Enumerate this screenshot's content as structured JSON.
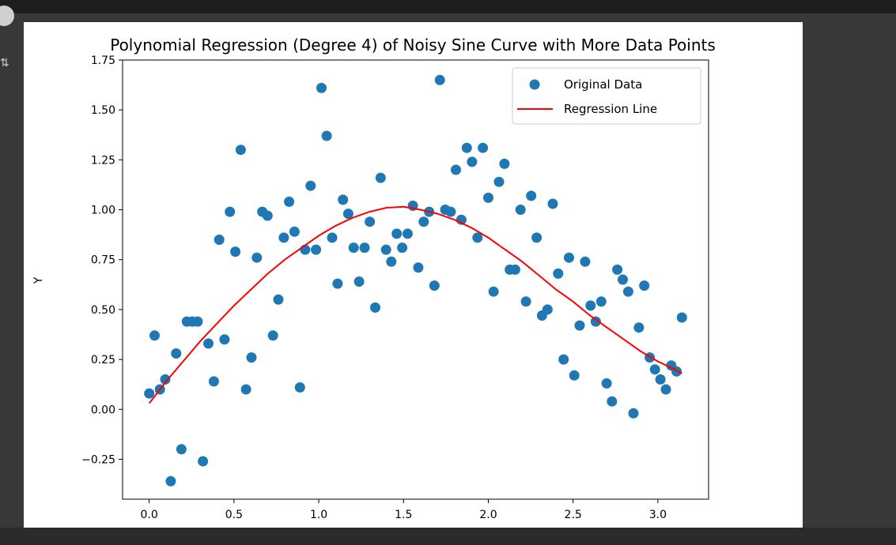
{
  "chart_data": {
    "type": "scatter",
    "title": "Polynomial Regression (Degree 4) of Noisy Sine Curve with More Data Points",
    "xlabel": "",
    "ylabel": "Y",
    "xlim": [
      -0.157,
      3.299
    ],
    "ylim": [
      -0.45,
      1.75
    ],
    "xticks": [
      0.0,
      0.5,
      1.0,
      1.5,
      2.0,
      2.5,
      3.0
    ],
    "xtick_labels": [
      "0.0",
      "0.5",
      "1.0",
      "1.5",
      "2.0",
      "2.5",
      "3.0"
    ],
    "yticks": [
      -0.25,
      0.0,
      0.25,
      0.5,
      0.75,
      1.0,
      1.25,
      1.5,
      1.75
    ],
    "ytick_labels": [
      "−0.25",
      "0.00",
      "0.25",
      "0.50",
      "0.75",
      "1.00",
      "1.25",
      "1.50",
      "1.75"
    ],
    "grid": false,
    "legend_position": "top-right",
    "series": [
      {
        "name": "Original Data",
        "kind": "scatter",
        "color": "#1f77b4",
        "x": [
          0.0,
          0.032,
          0.063,
          0.095,
          0.127,
          0.159,
          0.19,
          0.222,
          0.254,
          0.286,
          0.317,
          0.349,
          0.381,
          0.413,
          0.444,
          0.476,
          0.508,
          0.54,
          0.571,
          0.603,
          0.635,
          0.667,
          0.698,
          0.73,
          0.762,
          0.794,
          0.825,
          0.857,
          0.889,
          0.92,
          0.952,
          0.984,
          1.016,
          1.047,
          1.079,
          1.111,
          1.143,
          1.174,
          1.206,
          1.238,
          1.27,
          1.301,
          1.333,
          1.365,
          1.397,
          1.428,
          1.46,
          1.492,
          1.524,
          1.555,
          1.587,
          1.619,
          1.651,
          1.682,
          1.714,
          1.746,
          1.778,
          1.809,
          1.841,
          1.873,
          1.904,
          1.936,
          1.968,
          2.0,
          2.031,
          2.063,
          2.095,
          2.127,
          2.158,
          2.19,
          2.222,
          2.253,
          2.285,
          2.317,
          2.349,
          2.38,
          2.412,
          2.444,
          2.476,
          2.507,
          2.539,
          2.571,
          2.603,
          2.634,
          2.666,
          2.698,
          2.729,
          2.761,
          2.793,
          2.825,
          2.856,
          2.888,
          2.92,
          2.952,
          2.983,
          3.015,
          3.047,
          3.079,
          3.11,
          3.142
        ],
        "y": [
          0.08,
          0.37,
          0.1,
          0.15,
          -0.36,
          0.28,
          -0.2,
          0.44,
          0.44,
          0.44,
          -0.26,
          0.33,
          0.14,
          0.85,
          0.35,
          0.99,
          0.79,
          1.3,
          0.1,
          0.26,
          0.76,
          0.99,
          0.97,
          0.37,
          0.55,
          0.86,
          1.04,
          0.89,
          0.11,
          0.8,
          1.12,
          0.8,
          1.61,
          1.37,
          0.86,
          0.63,
          1.05,
          0.98,
          0.81,
          0.64,
          0.81,
          0.94,
          0.51,
          1.16,
          0.8,
          0.74,
          0.88,
          0.81,
          0.88,
          1.02,
          0.71,
          0.94,
          0.99,
          0.62,
          1.65,
          1.0,
          0.99,
          1.2,
          0.95,
          1.31,
          1.24,
          0.86,
          1.31,
          1.06,
          0.59,
          1.14,
          1.23,
          0.7,
          0.7,
          1.0,
          0.54,
          1.07,
          0.86,
          0.47,
          0.5,
          1.03,
          0.68,
          0.25,
          0.76,
          0.17,
          0.42,
          0.74,
          0.52,
          0.44,
          0.54,
          0.13,
          0.04,
          0.7,
          0.65,
          0.59,
          -0.02,
          0.41,
          0.62,
          0.26,
          0.2,
          0.15,
          0.1,
          0.22,
          0.19,
          0.46
        ]
      },
      {
        "name": "Regression Line",
        "kind": "line",
        "color": "#ff0000",
        "x": [
          0.0,
          0.1,
          0.2,
          0.3,
          0.4,
          0.5,
          0.6,
          0.7,
          0.8,
          0.9,
          1.0,
          1.1,
          1.2,
          1.3,
          1.4,
          1.5,
          1.6,
          1.7,
          1.8,
          1.9,
          2.0,
          2.1,
          2.2,
          2.3,
          2.4,
          2.5,
          2.6,
          2.7,
          2.8,
          2.9,
          3.0,
          3.1,
          3.142
        ],
        "y": [
          0.03,
          0.14,
          0.24,
          0.34,
          0.43,
          0.52,
          0.6,
          0.68,
          0.75,
          0.81,
          0.87,
          0.92,
          0.96,
          0.99,
          1.01,
          1.015,
          1.0,
          0.98,
          0.95,
          0.91,
          0.86,
          0.8,
          0.74,
          0.67,
          0.6,
          0.54,
          0.47,
          0.41,
          0.35,
          0.29,
          0.24,
          0.2,
          0.18
        ]
      }
    ]
  }
}
